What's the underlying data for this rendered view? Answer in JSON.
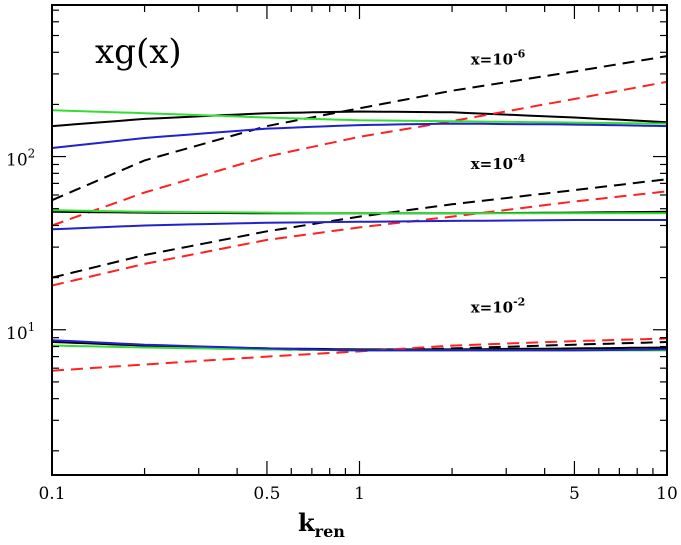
{
  "chart_data": {
    "type": "line",
    "title": "xg(x)",
    "xlabel": "k",
    "xlabel_sub": "ren",
    "ylabel": "",
    "xscale": "log",
    "yscale": "log",
    "xlim": [
      0.1,
      10
    ],
    "ylim": [
      1.45,
      750
    ],
    "grid": false,
    "xticks": [
      0.1,
      0.5,
      1,
      5,
      10
    ],
    "xtick_labels": [
      "0.1",
      "0.5",
      "1",
      "5",
      "10"
    ],
    "yticks": [
      10,
      100
    ],
    "ytick_labels": [
      {
        "base": "10",
        "exp": "1"
      },
      {
        "base": "10",
        "exp": "2"
      }
    ],
    "annotations": [
      {
        "base": "x=10",
        "exp": "-6",
        "x": 2.3,
        "y": 340
      },
      {
        "base": "x=10",
        "exp": "-4",
        "x": 2.3,
        "y": 85
      },
      {
        "base": "x=10",
        "exp": "-2",
        "x": 2.3,
        "y": 12.6
      }
    ],
    "colors": {
      "black": "#000000",
      "red": "#ff2020",
      "green": "#33dd33",
      "blue": "#2222cc"
    },
    "series": [
      {
        "group": "x=10^-6",
        "color": "black",
        "dashed": false,
        "x": [
          0.1,
          0.2,
          0.5,
          1,
          2,
          5,
          10
        ],
        "y": [
          150,
          165,
          178,
          182,
          180,
          168,
          158
        ]
      },
      {
        "group": "x=10^-6",
        "color": "black",
        "dashed": true,
        "x": [
          0.1,
          0.2,
          0.5,
          1,
          2,
          5,
          10
        ],
        "y": [
          56,
          95,
          150,
          190,
          240,
          310,
          380
        ]
      },
      {
        "group": "x=10^-6",
        "color": "red",
        "dashed": true,
        "x": [
          0.1,
          0.2,
          0.5,
          1,
          2,
          5,
          10
        ],
        "y": [
          40,
          62,
          100,
          130,
          160,
          215,
          270
        ]
      },
      {
        "group": "x=10^-6",
        "color": "green",
        "dashed": false,
        "x": [
          0.1,
          0.2,
          0.5,
          1,
          2,
          5,
          10
        ],
        "y": [
          185,
          178,
          168,
          162,
          160,
          157,
          155
        ]
      },
      {
        "group": "x=10^-6",
        "color": "blue",
        "dashed": false,
        "x": [
          0.1,
          0.2,
          0.5,
          1,
          2,
          5,
          10
        ],
        "y": [
          112,
          128,
          145,
          152,
          155,
          153,
          150
        ]
      },
      {
        "group": "x=10^-4",
        "color": "black",
        "dashed": false,
        "x": [
          0.1,
          0.2,
          0.5,
          1,
          2,
          5,
          10
        ],
        "y": [
          48,
          47.5,
          47,
          47,
          47,
          47.5,
          48
        ]
      },
      {
        "group": "x=10^-4",
        "color": "black",
        "dashed": true,
        "x": [
          0.1,
          0.2,
          0.5,
          1,
          2,
          5,
          10
        ],
        "y": [
          20,
          27,
          37,
          45,
          53,
          64,
          74
        ]
      },
      {
        "group": "x=10^-4",
        "color": "red",
        "dashed": true,
        "x": [
          0.1,
          0.2,
          0.5,
          1,
          2,
          5,
          10
        ],
        "y": [
          18,
          24,
          33,
          39,
          45,
          55,
          63
        ]
      },
      {
        "group": "x=10^-4",
        "color": "green",
        "dashed": false,
        "x": [
          0.1,
          0.2,
          0.5,
          1,
          2,
          5,
          10
        ],
        "y": [
          49,
          48,
          47.5,
          47,
          47,
          47,
          47
        ]
      },
      {
        "group": "x=10^-4",
        "color": "blue",
        "dashed": false,
        "x": [
          0.1,
          0.2,
          0.5,
          1,
          2,
          5,
          10
        ],
        "y": [
          38,
          40,
          41.5,
          42,
          42.5,
          43,
          43
        ]
      },
      {
        "group": "x=10^-2",
        "color": "black",
        "dashed": false,
        "x": [
          0.1,
          0.2,
          0.5,
          1,
          2,
          5,
          10
        ],
        "y": [
          8.5,
          8.1,
          7.8,
          7.7,
          7.7,
          7.8,
          7.9
        ]
      },
      {
        "group": "x=10^-2",
        "color": "black",
        "dashed": true,
        "x": [
          0.1,
          0.2,
          0.5,
          1,
          2,
          5,
          10
        ],
        "y": [
          8.6,
          8.1,
          7.7,
          7.6,
          7.8,
          8.2,
          8.5
        ]
      },
      {
        "group": "x=10^-2",
        "color": "red",
        "dashed": true,
        "x": [
          0.1,
          0.2,
          0.5,
          1,
          2,
          5,
          10
        ],
        "y": [
          5.8,
          6.3,
          7.0,
          7.5,
          8.1,
          8.6,
          8.9
        ]
      },
      {
        "group": "x=10^-2",
        "color": "green",
        "dashed": false,
        "x": [
          0.1,
          0.2,
          0.5,
          1,
          2,
          5,
          10
        ],
        "y": [
          8.1,
          7.9,
          7.7,
          7.6,
          7.6,
          7.6,
          7.6
        ]
      },
      {
        "group": "x=10^-2",
        "color": "blue",
        "dashed": false,
        "x": [
          0.1,
          0.2,
          0.5,
          1,
          2,
          5,
          10
        ],
        "y": [
          8.7,
          8.2,
          7.8,
          7.6,
          7.6,
          7.6,
          7.7
        ]
      }
    ]
  }
}
